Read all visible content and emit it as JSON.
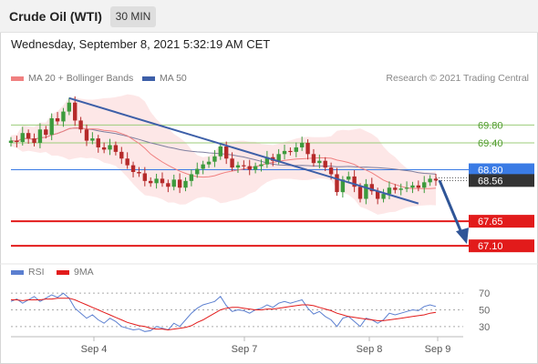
{
  "header": {
    "title": "Crude Oil (WTI)",
    "timeframe": "30 MIN"
  },
  "datetime": "Wednesday, September 8, 2021 5:32:19 AM CET",
  "legend_main": [
    {
      "label": "MA 20 + Bollinger Bands",
      "color": "#f08080"
    },
    {
      "label": "MA 50",
      "color": "#3d5fa8"
    }
  ],
  "copyright": "Research © 2021 Trading Central",
  "legend_rsi": [
    {
      "label": "RSI",
      "color": "#5b7fd0"
    },
    {
      "label": "9MA",
      "color": "#e21b1b"
    }
  ],
  "colors": {
    "up": "#3d9b3d",
    "down": "#b52a2a",
    "support": "#e21b1b",
    "pivot": "#3a7be5",
    "resistance": "#9ccc7a",
    "bollinger": "#fde3e3",
    "ma20": "#f08080",
    "ma50": "#7f7f9f",
    "trendline": "#3d5fa8",
    "price_badge": "#333333"
  },
  "chart_data": {
    "type": "candlestick",
    "y_range": [
      66.9,
      70.6
    ],
    "x_labels": [
      "Sep 4",
      "Sep 7",
      "Sep 8",
      "Sep 9"
    ],
    "levels": [
      {
        "value": 69.8,
        "label": "69.80",
        "kind": "resistance"
      },
      {
        "value": 69.4,
        "label": "69.40",
        "kind": "resistance"
      },
      {
        "value": 68.8,
        "label": "68.80",
        "kind": "pivot"
      },
      {
        "value": 67.65,
        "label": "67.65",
        "kind": "support"
      },
      {
        "value": 67.1,
        "label": "67.10",
        "kind": "support"
      }
    ],
    "last_price": "68.56",
    "close": [
      69.45,
      69.42,
      69.62,
      69.5,
      69.4,
      69.7,
      69.58,
      69.95,
      69.88,
      70.1,
      70.3,
      69.9,
      69.7,
      69.45,
      69.5,
      69.3,
      69.25,
      69.35,
      69.2,
      69.05,
      68.9,
      68.75,
      68.72,
      68.55,
      68.5,
      68.6,
      68.5,
      68.42,
      68.58,
      68.4,
      68.55,
      68.7,
      68.82,
      68.92,
      68.98,
      69.1,
      69.32,
      69.05,
      68.85,
      68.9,
      68.88,
      68.8,
      68.88,
      68.92,
      69.08,
      69.0,
      69.15,
      69.22,
      69.2,
      69.3,
      69.4,
      69.15,
      68.95,
      69.0,
      68.85,
      68.7,
      68.3,
      68.58,
      68.65,
      68.42,
      68.15,
      68.48,
      68.32,
      68.15,
      68.26,
      68.4,
      68.35,
      68.38,
      68.4,
      68.45,
      68.4,
      68.52,
      68.6,
      68.56
    ],
    "rsi": {
      "y_range": [
        20,
        80
      ],
      "ticks": [
        70,
        50,
        30
      ],
      "rsi": [
        60,
        63,
        58,
        62,
        66,
        60,
        64,
        68,
        65,
        70,
        64,
        52,
        46,
        40,
        44,
        38,
        34,
        40,
        36,
        30,
        28,
        26,
        27,
        24,
        25,
        30,
        28,
        26,
        34,
        30,
        38,
        46,
        52,
        56,
        58,
        60,
        66,
        55,
        48,
        50,
        49,
        46,
        50,
        52,
        56,
        53,
        58,
        60,
        58,
        60,
        62,
        52,
        45,
        48,
        42,
        38,
        30,
        40,
        42,
        36,
        30,
        40,
        38,
        34,
        38,
        46,
        44,
        46,
        48,
        50,
        49,
        54,
        56,
        54
      ],
      "ma": [
        62,
        62,
        61,
        62,
        62,
        62,
        63,
        63,
        64,
        64,
        64,
        62,
        59,
        56,
        53,
        50,
        47,
        44,
        41,
        38,
        35,
        33,
        31,
        30,
        28,
        27,
        27,
        26,
        27,
        28,
        29,
        31,
        35,
        38,
        42,
        46,
        50,
        52,
        53,
        53,
        52,
        51,
        50,
        50,
        51,
        51,
        52,
        53,
        54,
        55,
        56,
        56,
        55,
        53,
        51,
        49,
        46,
        44,
        42,
        41,
        40,
        39,
        38,
        37,
        37,
        38,
        39,
        40,
        41,
        42,
        43,
        44,
        46,
        47
      ]
    }
  }
}
